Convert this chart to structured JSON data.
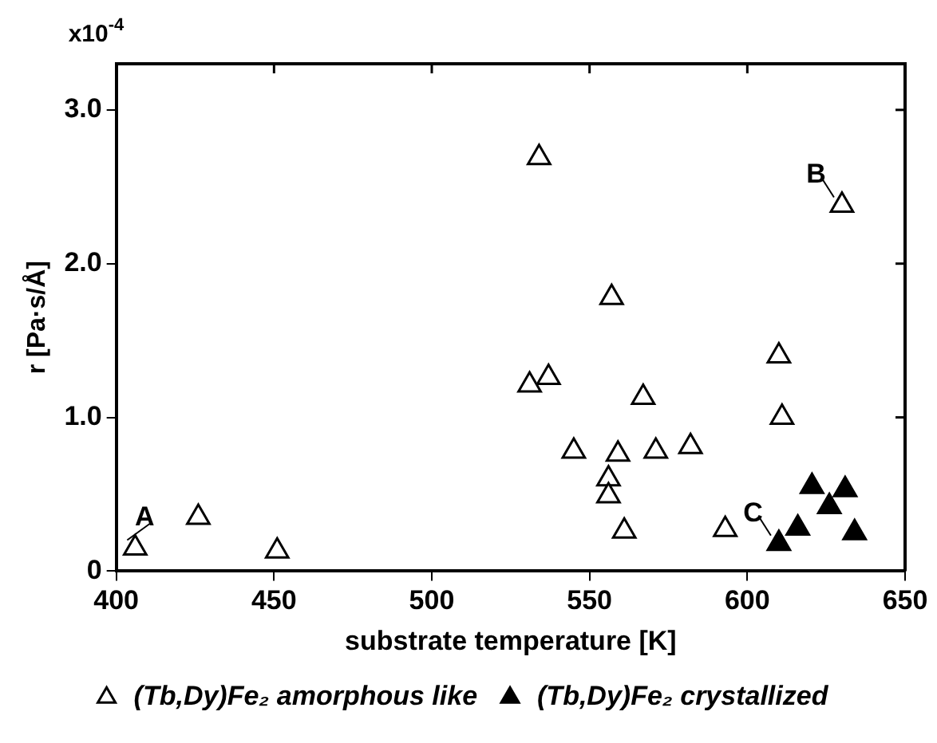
{
  "chart_data": {
    "type": "scatter",
    "xlabel": "substrate temperature [K]",
    "ylabel": "r [Pa·s/Å]",
    "xlim": [
      400,
      650
    ],
    "xticks": [
      400,
      450,
      500,
      550,
      600,
      650
    ],
    "ylim": [
      0,
      3.3
    ],
    "yticks": [
      0,
      {
        "value": 1,
        "label": "1.0"
      },
      {
        "value": 2,
        "label": "2.0"
      },
      {
        "value": 3,
        "label": "3.0"
      }
    ],
    "grid": false,
    "legend": "bottom",
    "marker": "triangle",
    "series": [
      {
        "name": "(Tb,Dy)Fe₂ amorphous like",
        "color": "#ffffff",
        "x": [
          406,
          426,
          451,
          534,
          630,
          557,
          610,
          531,
          537,
          567,
          611,
          545,
          559,
          571,
          582,
          556,
          556,
          561,
          593
        ],
        "values": [
          0.15,
          0.35,
          0.13,
          2.69,
          2.38,
          1.78,
          1.4,
          1.21,
          1.26,
          1.13,
          1.0,
          0.78,
          0.76,
          0.78,
          0.81,
          0.6,
          0.49,
          0.26,
          0.27
        ]
      },
      {
        "name": "(Tb,Dy)Fe₂ crystallized",
        "color": "#000000",
        "x": [
          610,
          616,
          620.5,
          631,
          626,
          634
        ],
        "values": [
          0.18,
          0.28,
          0.55,
          0.53,
          0.42,
          0.25
        ]
      }
    ],
    "annotations": [
      "x10$^{-4}$",
      {
        "text": "A",
        "x": 406,
        "y": 0.15
      },
      {
        "text": "B",
        "x": 630,
        "y": 2.38
      },
      {
        "text": "C",
        "x": 610,
        "y": 0.18
      }
    ]
  }
}
